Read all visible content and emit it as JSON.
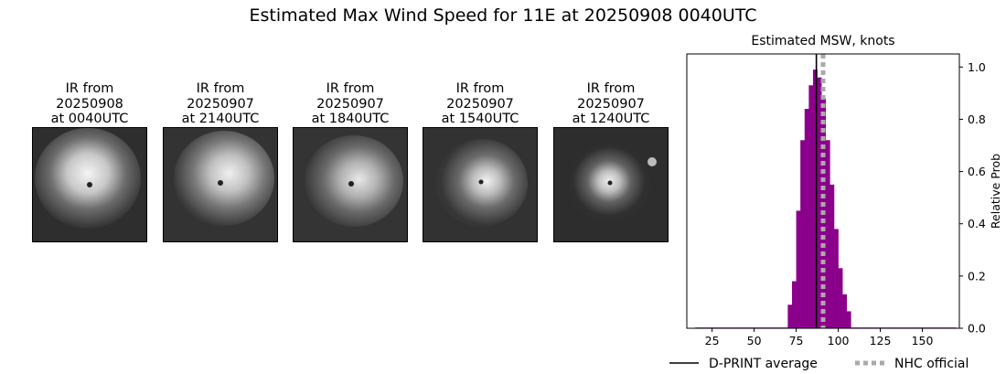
{
  "figure": {
    "title": "Estimated Max Wind Speed for 11E at 20250908 0040UTC"
  },
  "ir_panels": [
    {
      "caption": "IR from\n20250908\nat 0040UTC"
    },
    {
      "caption": "IR from\n20250907\nat 2140UTC"
    },
    {
      "caption": "IR from\n20250907\nat 1840UTC"
    },
    {
      "caption": "IR from\n20250907\nat 1540UTC"
    },
    {
      "caption": "IR from\n20250907\nat 1240UTC"
    }
  ],
  "chart_data": {
    "type": "bar",
    "title": "Estimated MSW, knots",
    "xlabel": "",
    "ylabel": "Relative Prob",
    "xlim": [
      10,
      172
    ],
    "ylim": [
      0,
      1.05
    ],
    "xticks": [
      25,
      50,
      75,
      100,
      125,
      150
    ],
    "yticks": [
      0.0,
      0.2,
      0.4,
      0.6,
      0.8,
      1.0
    ],
    "ytick_labels": [
      "0.0",
      "0.2",
      "0.4",
      "0.6",
      "0.8",
      "1.0"
    ],
    "yaxis_side": "right",
    "bin_width": 2.5,
    "bars_color": "#8b008b",
    "bins": [
      {
        "x": 15,
        "value": 0.003
      },
      {
        "x": 17.5,
        "value": 0.003
      },
      {
        "x": 20,
        "value": 0.003
      },
      {
        "x": 22.5,
        "value": 0.003
      },
      {
        "x": 25,
        "value": 0.003
      },
      {
        "x": 27.5,
        "value": 0.003
      },
      {
        "x": 30,
        "value": 0.003
      },
      {
        "x": 32.5,
        "value": 0.003
      },
      {
        "x": 35,
        "value": 0.003
      },
      {
        "x": 37.5,
        "value": 0.003
      },
      {
        "x": 40,
        "value": 0.003
      },
      {
        "x": 42.5,
        "value": 0.003
      },
      {
        "x": 45,
        "value": 0.003
      },
      {
        "x": 47.5,
        "value": 0.003
      },
      {
        "x": 50,
        "value": 0.003
      },
      {
        "x": 52.5,
        "value": 0.003
      },
      {
        "x": 55,
        "value": 0.003
      },
      {
        "x": 57.5,
        "value": 0.003
      },
      {
        "x": 60,
        "value": 0.003
      },
      {
        "x": 62.5,
        "value": 0.003
      },
      {
        "x": 65,
        "value": 0.003
      },
      {
        "x": 67.5,
        "value": 0.003
      },
      {
        "x": 70,
        "value": 0.09
      },
      {
        "x": 72.5,
        "value": 0.18
      },
      {
        "x": 75,
        "value": 0.45
      },
      {
        "x": 77.5,
        "value": 0.72
      },
      {
        "x": 80,
        "value": 0.84
      },
      {
        "x": 82.5,
        "value": 0.93
      },
      {
        "x": 85,
        "value": 0.99
      },
      {
        "x": 87.5,
        "value": 0.96
      },
      {
        "x": 90,
        "value": 0.88
      },
      {
        "x": 92.5,
        "value": 0.72
      },
      {
        "x": 95,
        "value": 0.55
      },
      {
        "x": 97.5,
        "value": 0.38
      },
      {
        "x": 100,
        "value": 0.23
      },
      {
        "x": 102.5,
        "value": 0.13
      },
      {
        "x": 105,
        "value": 0.065
      },
      {
        "x": 107.5,
        "value": 0.003
      },
      {
        "x": 110,
        "value": 0.003
      },
      {
        "x": 112.5,
        "value": 0.003
      },
      {
        "x": 115,
        "value": 0.003
      },
      {
        "x": 117.5,
        "value": 0.003
      },
      {
        "x": 120,
        "value": 0.003
      },
      {
        "x": 122.5,
        "value": 0.003
      },
      {
        "x": 125,
        "value": 0.003
      },
      {
        "x": 127.5,
        "value": 0.003
      },
      {
        "x": 130,
        "value": 0.003
      },
      {
        "x": 132.5,
        "value": 0.003
      },
      {
        "x": 135,
        "value": 0.003
      },
      {
        "x": 137.5,
        "value": 0.003
      },
      {
        "x": 140,
        "value": 0.003
      },
      {
        "x": 142.5,
        "value": 0.003
      },
      {
        "x": 145,
        "value": 0.003
      },
      {
        "x": 147.5,
        "value": 0.003
      },
      {
        "x": 150,
        "value": 0.003
      },
      {
        "x": 152.5,
        "value": 0.003
      },
      {
        "x": 155,
        "value": 0.003
      },
      {
        "x": 157.5,
        "value": 0.003
      },
      {
        "x": 160,
        "value": 0.003
      },
      {
        "x": 162.5,
        "value": 0.003
      },
      {
        "x": 165,
        "value": 0.003
      },
      {
        "x": 167.5,
        "value": 0.003
      }
    ],
    "vlines": [
      {
        "name": "D-PRINT average",
        "x": 87,
        "color": "#000000",
        "style": "solid"
      },
      {
        "name": "NHC official",
        "x": 91,
        "color": "#aaaaaa",
        "style": "dotted"
      }
    ],
    "legend_placement": "bottom"
  }
}
